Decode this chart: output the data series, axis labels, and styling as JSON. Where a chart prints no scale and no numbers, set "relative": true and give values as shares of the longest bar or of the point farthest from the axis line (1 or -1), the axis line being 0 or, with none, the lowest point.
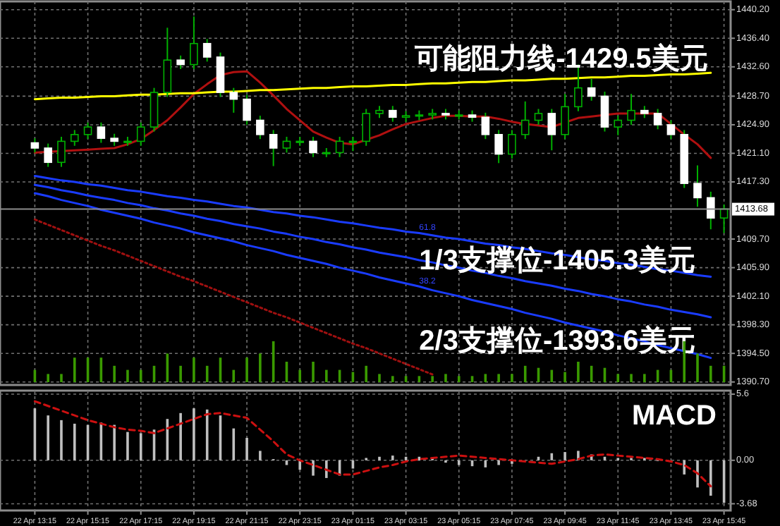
{
  "chart_data": [
    {
      "type": "candlestick",
      "categories": [
        null,
        null,
        null,
        null,
        null,
        null,
        null,
        null,
        null,
        null,
        null,
        null,
        null,
        null,
        null,
        null,
        null,
        null,
        null,
        null,
        null,
        null,
        null,
        null,
        null,
        null,
        null,
        null,
        null,
        null,
        null,
        null,
        null,
        null,
        null,
        null,
        null,
        null,
        null,
        null,
        null,
        null,
        null,
        null,
        null,
        null,
        null,
        null,
        null,
        null,
        null,
        null,
        null
      ],
      "ohlc": [
        [
          1422.5,
          1423.1,
          1421.2,
          1421.8
        ],
        [
          1421.8,
          1422.4,
          1419.3,
          1419.9
        ],
        [
          1419.9,
          1423.3,
          1419.3,
          1422.7
        ],
        [
          1422.7,
          1424.2,
          1422.1,
          1423.6
        ],
        [
          1423.6,
          1425.2,
          1423.0,
          1424.6
        ],
        [
          1424.6,
          1425.2,
          1422.5,
          1423.1
        ],
        [
          1423.1,
          1423.7,
          1422.1,
          1422.7
        ],
        [
          1422.7,
          1423.3,
          1422.1,
          1422.7
        ],
        [
          1422.7,
          1425.2,
          1422.1,
          1424.6
        ],
        [
          1424.6,
          1429.8,
          1424.0,
          1429.2
        ],
        [
          1429.2,
          1437.8,
          1428.6,
          1433.5
        ],
        [
          1433.5,
          1434.1,
          1432.3,
          1432.9
        ],
        [
          1432.9,
          1439.3,
          1432.3,
          1435.7
        ],
        [
          1435.7,
          1436.3,
          1433.3,
          1433.9
        ],
        [
          1433.9,
          1434.5,
          1428.6,
          1429.2
        ],
        [
          1429.2,
          1429.8,
          1426.5,
          1428.3
        ],
        [
          1428.3,
          1428.9,
          1424.9,
          1425.5
        ],
        [
          1425.5,
          1426.1,
          1423.0,
          1423.6
        ],
        [
          1423.6,
          1424.2,
          1419.4,
          1421.8
        ],
        [
          1421.8,
          1423.3,
          1421.2,
          1422.7
        ],
        [
          1422.7,
          1423.3,
          1422.1,
          1422.7
        ],
        [
          1422.7,
          1423.3,
          1420.6,
          1421.2
        ],
        [
          1421.2,
          1421.8,
          1420.6,
          1421.2
        ],
        [
          1421.2,
          1423.3,
          1420.6,
          1422.7
        ],
        [
          1422.7,
          1423.3,
          1421.4,
          1422.7
        ],
        [
          1422.7,
          1427.0,
          1422.1,
          1426.4
        ],
        [
          1426.4,
          1427.4,
          1425.8,
          1426.8
        ],
        [
          1426.8,
          1427.4,
          1425.3,
          1425.9
        ],
        [
          1425.9,
          1426.7,
          1425.3,
          1426.1
        ],
        [
          1426.1,
          1426.8,
          1425.5,
          1426.2
        ],
        [
          1426.2,
          1427.0,
          1425.6,
          1426.4
        ],
        [
          1426.4,
          1427.0,
          1425.6,
          1426.2
        ],
        [
          1426.2,
          1426.8,
          1425.6,
          1426.2
        ],
        [
          1426.2,
          1426.8,
          1425.3,
          1425.9
        ],
        [
          1425.9,
          1426.5,
          1423.0,
          1423.6
        ],
        [
          1423.6,
          1424.2,
          1419.8,
          1421.0
        ],
        [
          1421.0,
          1424.2,
          1420.4,
          1423.6
        ],
        [
          1423.6,
          1428.0,
          1423.0,
          1425.5
        ],
        [
          1425.5,
          1427.0,
          1424.9,
          1426.4
        ],
        [
          1426.4,
          1427.0,
          1421.5,
          1423.6
        ],
        [
          1423.6,
          1429.0,
          1423.0,
          1427.3
        ],
        [
          1427.3,
          1432.9,
          1426.7,
          1429.8
        ],
        [
          1429.8,
          1431.0,
          1428.1,
          1428.7
        ],
        [
          1428.7,
          1429.3,
          1424.0,
          1424.6
        ],
        [
          1424.6,
          1426.1,
          1423.5,
          1425.5
        ],
        [
          1425.5,
          1429.0,
          1424.9,
          1426.8
        ],
        [
          1426.8,
          1427.4,
          1425.8,
          1426.4
        ],
        [
          1426.4,
          1427.0,
          1424.3,
          1424.9
        ],
        [
          1424.9,
          1425.5,
          1423.0,
          1423.6
        ],
        [
          1423.6,
          1424.2,
          1416.5,
          1417.1
        ],
        [
          1417.1,
          1419.5,
          1414.0,
          1415.2
        ],
        [
          1415.2,
          1416.0,
          1411.0,
          1412.5
        ],
        [
          1412.5,
          1414.3,
          1410.5,
          1413.7
        ]
      ],
      "ylim": [
        1390.3,
        1441.3
      ],
      "yticks": [
        {
          "value": 1440.2,
          "label": "1440.20"
        },
        {
          "value": 1436.4,
          "label": "1436.40"
        },
        {
          "value": 1432.6,
          "label": "1432.60"
        },
        {
          "value": 1428.7,
          "label": "1428.70"
        },
        {
          "value": 1424.9,
          "label": "1424.90"
        },
        {
          "value": 1421.1,
          "label": "1421.10"
        },
        {
          "value": 1417.3,
          "label": "1417.30"
        },
        {
          "value": 1409.7,
          "label": "1409.70"
        },
        {
          "value": 1405.9,
          "label": "1405.90"
        },
        {
          "value": 1402.1,
          "label": "1402.10"
        },
        {
          "value": 1398.3,
          "label": "1398.30"
        },
        {
          "value": 1394.5,
          "label": "1394.50"
        },
        {
          "value": 1390.7,
          "label": "1390.70"
        }
      ],
      "tick_labels": "y",
      "grid": true,
      "series": [
        {
          "type": "line",
          "color": "#b01010",
          "values": [
            1421.2,
            1421.3,
            1421.4,
            1421.5,
            1421.6,
            1421.7,
            1421.8,
            1422.3,
            1423.0,
            1424.2,
            1425.5,
            1427.2,
            1429.0,
            1430.3,
            1431.5,
            1431.9,
            1432.0,
            1430.5,
            1428.8,
            1427.0,
            1425.5,
            1424.0,
            1423.2,
            1422.5,
            1422.3,
            1422.9,
            1423.5,
            1424.3,
            1425.0,
            1425.4,
            1425.8,
            1426.1,
            1426.1,
            1426.0,
            1426.0,
            1425.7,
            1425.3,
            1425.0,
            1424.8,
            1424.6,
            1425.2,
            1425.8,
            1426.0,
            1426.2,
            1426.4,
            1426.4,
            1426.4,
            1426.4,
            1425.0,
            1423.6,
            1422.3,
            1420.5,
            null
          ]
        },
        {
          "type": "line",
          "color": "#ffff00",
          "values": [
            1428.3,
            1428.4,
            1428.5,
            1428.5,
            1428.6,
            1428.7,
            1428.7,
            1428.8,
            1428.9,
            1428.9,
            1429.0,
            1429.1,
            1429.1,
            1429.2,
            1429.3,
            1429.3,
            1429.4,
            1429.5,
            1429.5,
            1429.6,
            1429.7,
            1429.8,
            1429.8,
            1429.9,
            1430.0,
            1430.0,
            1430.1,
            1430.2,
            1430.2,
            1430.3,
            1430.4,
            1430.4,
            1430.5,
            1430.6,
            1430.6,
            1430.7,
            1430.8,
            1430.8,
            1430.9,
            1431.0,
            1431.0,
            1431.1,
            1431.2,
            1431.2,
            1431.3,
            1431.4,
            1431.4,
            1431.5,
            1431.6,
            1431.6,
            1431.7,
            1431.8,
            null
          ]
        },
        {
          "type": "line",
          "color": "#1a3cff",
          "values": [
            1418.1,
            1417.8,
            1417.5,
            1417.3,
            1417.0,
            1416.8,
            1416.5,
            1416.2,
            1416.0,
            1415.7,
            1415.4,
            1415.2,
            1414.9,
            1414.7,
            1414.4,
            1414.1,
            1413.9,
            1413.6,
            1413.3,
            1413.1,
            1412.8,
            1412.6,
            1412.3,
            1412.0,
            1411.8,
            1411.5,
            1411.2,
            1411.0,
            1410.7,
            1410.5,
            1410.2,
            1409.9,
            1409.7,
            1409.4,
            1409.1,
            1408.9,
            1408.6,
            1408.4,
            1408.1,
            1407.8,
            1407.6,
            1407.3,
            1407.0,
            1406.8,
            1406.5,
            1406.3,
            1406.0,
            1405.7,
            1405.5,
            1405.2,
            1404.9,
            1404.7,
            null
          ]
        },
        {
          "type": "line",
          "color": "#1a3cff",
          "values": [
            1416.9,
            1416.6,
            1416.2,
            1415.9,
            1415.5,
            1415.2,
            1414.9,
            1414.5,
            1414.2,
            1413.8,
            1413.5,
            1413.1,
            1412.8,
            1412.4,
            1412.1,
            1411.7,
            1411.4,
            1411.1,
            1410.7,
            1410.4,
            1410.0,
            1409.7,
            1409.3,
            1409.0,
            1408.6,
            1408.3,
            1407.9,
            1407.6,
            1407.3,
            1406.9,
            1406.6,
            1406.2,
            1405.9,
            1405.5,
            1405.2,
            1404.8,
            1404.5,
            1404.1,
            1403.8,
            1403.5,
            1403.1,
            1402.8,
            1402.4,
            1402.1,
            1401.7,
            1401.4,
            1401.0,
            1400.7,
            1400.3,
            1400.0,
            1399.7,
            1399.3,
            null
          ]
        },
        {
          "type": "line",
          "color": "#1a3cff",
          "values": [
            1415.8,
            1415.4,
            1414.9,
            1414.5,
            1414.1,
            1413.6,
            1413.2,
            1412.8,
            1412.4,
            1411.9,
            1411.5,
            1411.1,
            1410.6,
            1410.2,
            1409.8,
            1409.4,
            1408.9,
            1408.5,
            1408.1,
            1407.6,
            1407.2,
            1406.8,
            1406.4,
            1405.9,
            1405.5,
            1405.1,
            1404.6,
            1404.2,
            1403.8,
            1403.4,
            1402.9,
            1402.5,
            1402.1,
            1401.6,
            1401.2,
            1400.8,
            1400.4,
            1399.9,
            1399.5,
            1399.1,
            1398.6,
            1398.2,
            1397.8,
            1397.4,
            1396.9,
            1396.5,
            1396.1,
            1395.6,
            1395.2,
            1394.8,
            1394.4,
            1393.9,
            null
          ]
        },
        {
          "type": "line",
          "color": "#a01010",
          "line_style": "dotted",
          "values": [
            1412.3,
            1411.6,
            1410.9,
            1410.2,
            1409.5,
            1408.8,
            1408.2,
            1407.5,
            1406.8,
            1406.1,
            1405.4,
            1404.7,
            1404.1,
            1403.4,
            1402.7,
            1402.0,
            1401.3,
            1400.6,
            1399.9,
            1399.3,
            1398.6,
            1397.9,
            1397.2,
            1396.5,
            1395.8,
            1395.2,
            1394.5,
            1393.8,
            1393.1,
            1392.4,
            1391.7,
            null,
            null,
            null,
            null,
            null,
            null,
            null,
            null,
            null,
            null,
            null,
            null,
            null,
            null,
            null,
            null,
            null,
            null,
            null,
            null,
            null,
            null
          ]
        }
      ],
      "ref_lines": [
        {
          "axis": "y",
          "value": 1413.68,
          "label": "1413.68",
          "color": "#8c8c8c"
        }
      ],
      "annotations": [
        "可能阻力线-1429.5美元",
        "1/3支撑位-1405.3美元",
        "2/3支撑位-1393.6美元",
        "61.8",
        "38.2"
      ]
    },
    {
      "type": "bar",
      "relative": true,
      "color": "#3a9a00",
      "categories": [
        null,
        null,
        null,
        null,
        null,
        null,
        null,
        null,
        null,
        null,
        null,
        null,
        null,
        null,
        null,
        null,
        null,
        null,
        null,
        null,
        null,
        null,
        null,
        null,
        null,
        null,
        null,
        null,
        null,
        null,
        null,
        null,
        null,
        null,
        null,
        null,
        null,
        null,
        null,
        null,
        null,
        null,
        null,
        null,
        null,
        null,
        null,
        null,
        null,
        null,
        null,
        null,
        null
      ],
      "values": [
        0.3,
        0.2,
        0.2,
        0.6,
        0.6,
        0.6,
        0.4,
        0.3,
        0.3,
        0.4,
        0.7,
        0.4,
        0.6,
        0.4,
        0.6,
        0.3,
        0.6,
        0.7,
        1.0,
        0.5,
        0.3,
        0.5,
        0.3,
        0.3,
        0.25,
        0.4,
        0.2,
        0.15,
        0.15,
        0.15,
        0.15,
        0.2,
        0.15,
        0.15,
        0.2,
        0.2,
        0.2,
        0.4,
        0.35,
        0.3,
        0.25,
        0.5,
        0.4,
        0.35,
        0.2,
        0.2,
        0.2,
        0.3,
        0.3,
        1.0,
        0.7,
        0.4,
        0.4
      ],
      "tick_labels": false
    },
    {
      "type": "bar",
      "categories": [
        "22 Apr 13:15",
        null,
        null,
        null,
        "22 Apr 15:15",
        null,
        null,
        null,
        "22 Apr 17:15",
        null,
        null,
        null,
        "22 Apr 19:15",
        null,
        null,
        null,
        "22 Apr 21:15",
        null,
        null,
        null,
        "22 Apr 23:15",
        null,
        null,
        null,
        "23 Apr 01:15",
        null,
        null,
        null,
        "23 Apr 03:15",
        null,
        null,
        null,
        "23 Apr 05:15",
        null,
        null,
        null,
        "23 Apr 07:45",
        null,
        null,
        null,
        "23 Apr 09:45",
        null,
        null,
        null,
        "23 Apr 11:45",
        null,
        null,
        null,
        "23 Apr 13:45",
        null,
        null,
        null,
        "23 Apr 15:45"
      ],
      "series": [
        {
          "color": "#c0c0c0",
          "values": [
            4.4,
            3.8,
            3.4,
            3.1,
            3.0,
            3.2,
            3.0,
            2.4,
            2.3,
            2.6,
            3.5,
            4.0,
            4.4,
            4.3,
            3.8,
            2.7,
            1.9,
            0.8,
            0.1,
            -0.4,
            -0.8,
            -1.3,
            -1.5,
            -1.3,
            -0.7,
            0.2,
            0.3,
            0.4,
            0.3,
            0.3,
            0.2,
            -0.2,
            -0.4,
            -0.5,
            -0.6,
            -0.4,
            -0.3,
            null,
            0.3,
            0.6,
            0.7,
            0.8,
            0.5,
            0.3,
            0.2,
            0.2,
            0.2,
            0.0,
            null,
            -1.2,
            -2.3,
            -3.0,
            -3.6
          ]
        },
        {
          "type": "line",
          "color": "#cc1010",
          "line_style": "dashed",
          "values": [
            5.0,
            4.6,
            4.2,
            3.8,
            3.4,
            3.1,
            2.8,
            2.6,
            2.5,
            2.3,
            2.7,
            3.1,
            3.5,
            3.9,
            4.0,
            3.8,
            3.6,
            2.6,
            1.6,
            0.5,
            0.0,
            -0.4,
            -0.8,
            -1.2,
            -1.2,
            -0.9,
            -0.6,
            -0.4,
            -0.1,
            0.1,
            0.2,
            0.3,
            0.4,
            0.3,
            0.2,
            0.1,
            0.0,
            -0.1,
            -0.2,
            -0.3,
            -0.1,
            0.1,
            0.4,
            0.5,
            0.4,
            0.3,
            0.2,
            0.1,
            -0.1,
            -0.4,
            -1.1,
            -2.2,
            null
          ]
        }
      ],
      "ylim": [
        -4.25,
        5.9
      ],
      "yticks": [
        5.6,
        {
          "value": 0,
          "label": "0.00"
        },
        -3.68
      ],
      "grid": true,
      "annotations": [
        "MACD"
      ]
    }
  ]
}
